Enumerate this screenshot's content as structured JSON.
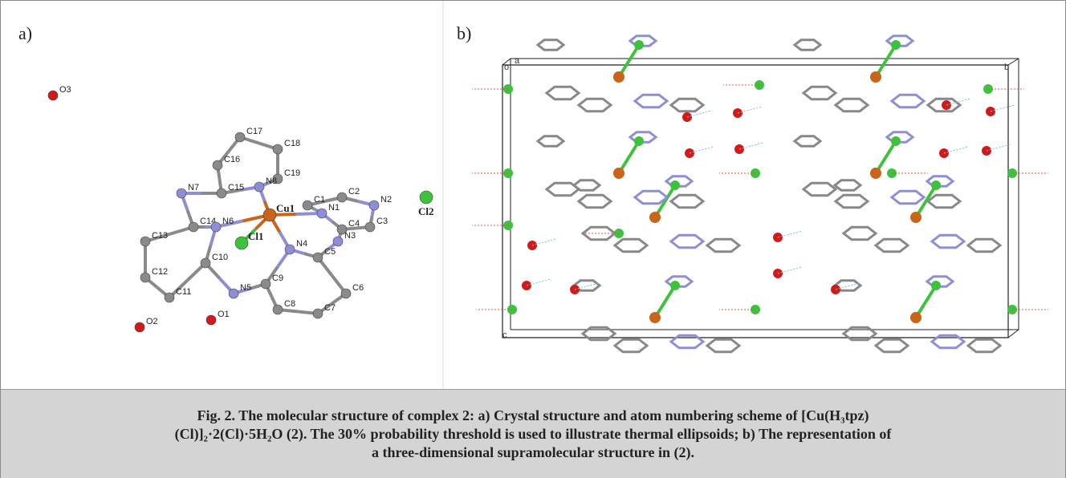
{
  "panel_a": {
    "label": "a)",
    "atoms": [
      "C17",
      "C18",
      "C16",
      "C19",
      "C15",
      "N8",
      "N7",
      "C1",
      "N1",
      "C2",
      "N2",
      "C3",
      "Cu1",
      "C14",
      "N6",
      "C4",
      "N3",
      "C13",
      "Cl1",
      "N4",
      "C5",
      "C12",
      "C10",
      "C6",
      "C11",
      "N5",
      "C9",
      "Cl2",
      "C8",
      "C7",
      "O2",
      "O1",
      "O3"
    ]
  },
  "panel_b": {
    "label": "b)",
    "axis_labels": [
      "o",
      "a",
      "b",
      "c"
    ]
  },
  "caption": {
    "lines": [
      "Fig. 2. The molecular structure of complex 2: a) Crystal structure and atom numbering scheme of [Cu(H₃tpz)",
      "(Cl)]₂·2(Cl)·5H₂O (2). The 30% probability threshold is used to illustrate thermal ellipsoids; b) The representation of",
      "a three-dimensional supramolecular structure in (2)."
    ]
  }
}
